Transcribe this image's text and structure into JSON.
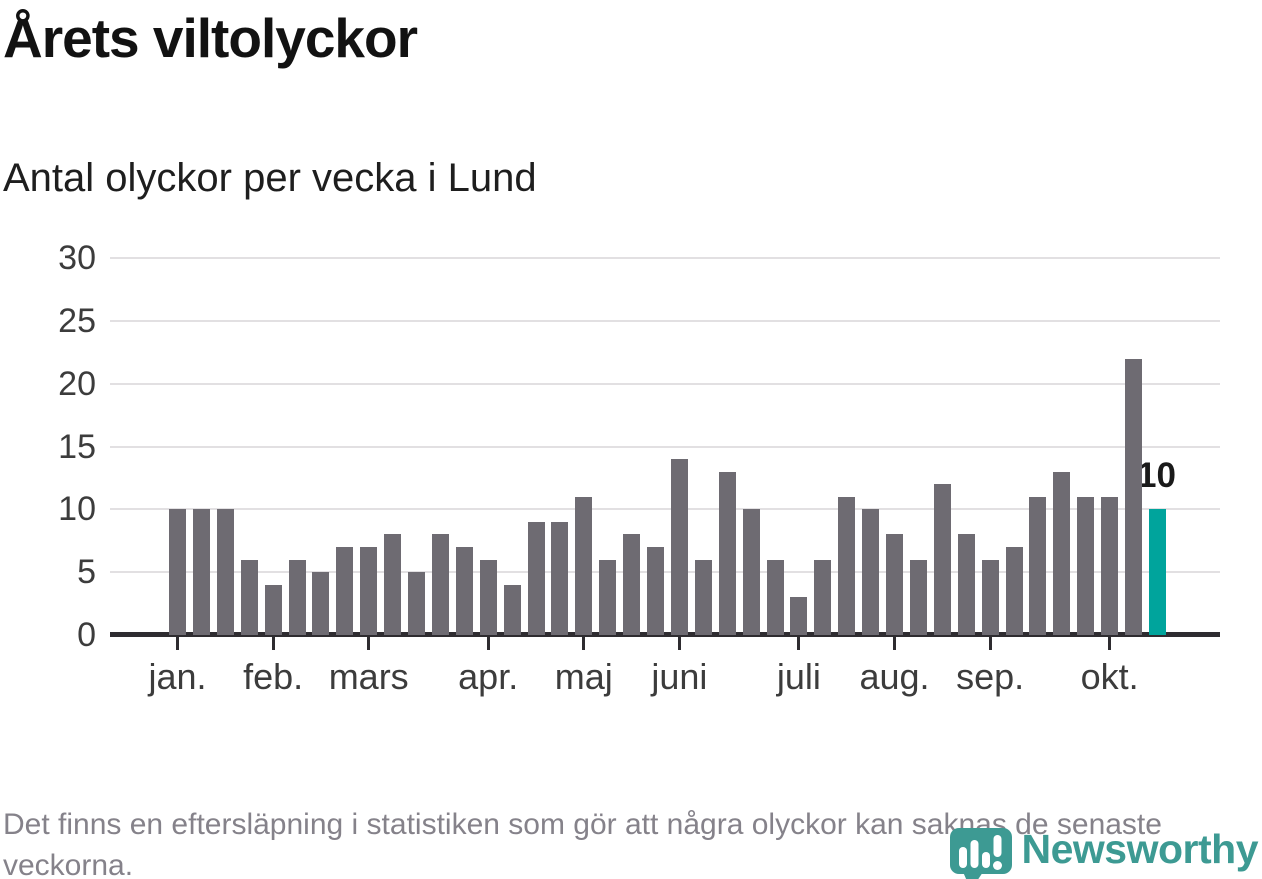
{
  "header": {
    "title": "Årets viltolyckor",
    "subtitle": "Antal olyckor per vecka i Lund"
  },
  "chart_data": {
    "type": "bar",
    "title": "Årets viltolyckor",
    "subtitle": "Antal olyckor per vecka i Lund",
    "x_unit": "vecka",
    "values": [
      10,
      10,
      10,
      6,
      4,
      6,
      5,
      7,
      7,
      8,
      5,
      8,
      7,
      6,
      4,
      9,
      9,
      11,
      6,
      8,
      7,
      14,
      6,
      13,
      10,
      6,
      3,
      6,
      11,
      10,
      8,
      6,
      12,
      8,
      6,
      7,
      11,
      13,
      11,
      11,
      22,
      10
    ],
    "highlight_index": 41,
    "annotation": {
      "text": "10",
      "refers_to": "senaste veckan"
    },
    "month_ticks": [
      {
        "label": "jan.",
        "week_index": 0
      },
      {
        "label": "feb.",
        "week_index": 4
      },
      {
        "label": "mars",
        "week_index": 8
      },
      {
        "label": "apr.",
        "week_index": 13
      },
      {
        "label": "maj",
        "week_index": 17
      },
      {
        "label": "juni",
        "week_index": 21
      },
      {
        "label": "juli",
        "week_index": 26
      },
      {
        "label": "aug.",
        "week_index": 30
      },
      {
        "label": "sep.",
        "week_index": 34
      },
      {
        "label": "okt.",
        "week_index": 39
      }
    ],
    "ylim": [
      0,
      30
    ],
    "yticks": [
      0,
      5,
      10,
      15,
      20,
      25,
      30
    ],
    "grid": "horizontal",
    "legend": "none",
    "colors": {
      "bar": "#6e6b72",
      "highlight": "#00a49c",
      "gridline": "#e2e0e2",
      "axis": "#2e2c30",
      "label": "#3c3c3c"
    }
  },
  "footer": {
    "note": "Det finns en eftersläpning i statistiken som gör att några olyckor kan saknas de senaste veckorna."
  },
  "brand": {
    "name": "Newsworthy",
    "color": "#3d9a93",
    "icon": "newsworthy-speech-bubble-chart-icon"
  }
}
